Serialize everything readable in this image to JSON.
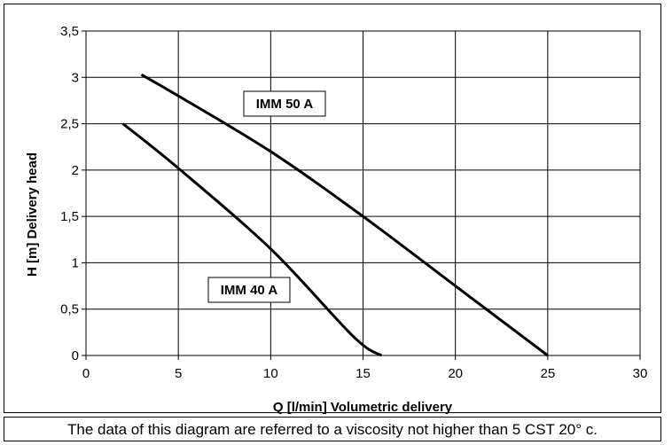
{
  "chart_data": {
    "type": "line",
    "title": "",
    "xlabel": "Q [l/min] Volumetric delivery",
    "ylabel": "H [m] Delivery head",
    "xlim": [
      0,
      30
    ],
    "ylim": [
      0,
      3.5
    ],
    "x_ticks": [
      0,
      5,
      10,
      15,
      20,
      25,
      30
    ],
    "y_ticks": [
      0,
      0.5,
      1,
      1.5,
      2,
      2.5,
      3,
      3.5
    ],
    "x_tick_labels": [
      "0",
      "5",
      "10",
      "15",
      "20",
      "25",
      "30"
    ],
    "y_tick_labels": [
      "0",
      "0,5",
      "1",
      "1,5",
      "2",
      "2,5",
      "3",
      "3,5"
    ],
    "grid": true,
    "line_color": "#000000",
    "series": [
      {
        "name": "IMM 50 A",
        "x": [
          3,
          5,
          10,
          15,
          20,
          25
        ],
        "y": [
          3.03,
          2.8,
          2.2,
          1.5,
          0.75,
          0.0
        ]
      },
      {
        "name": "IMM 40 A",
        "x": [
          2,
          5,
          10,
          14.5,
          16
        ],
        "y": [
          2.5,
          2.02,
          1.15,
          0.2,
          0.0
        ]
      }
    ]
  },
  "footnote": "The data of this diagram are referred to a viscosity not higher than 5 CST 20° c."
}
